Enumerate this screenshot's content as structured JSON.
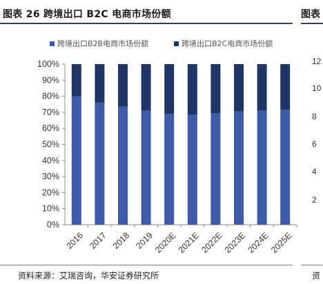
{
  "figure": {
    "title": "图表 26  跨境出口 B2C 电商市场份额",
    "title_right_fragment": "图表",
    "source": "资料来源：艾瑞咨询，华安证券研究所",
    "source_right_fragment": "资",
    "right_ticks": [
      "12",
      "10",
      "8",
      "6",
      "4",
      "2"
    ]
  },
  "chart_data": {
    "type": "bar",
    "stacked": true,
    "percent_stacked": true,
    "categories": [
      "2016",
      "2017",
      "2018",
      "2019",
      "2020E",
      "2021E",
      "2022E",
      "2023E",
      "2024E",
      "2025E"
    ],
    "series": [
      {
        "name": "跨境出口B2B电商市场份额",
        "color": "#3d5ba9",
        "values": [
          80.0,
          76.0,
          73.5,
          71.0,
          69.0,
          68.5,
          69.5,
          70.5,
          71.0,
          71.5
        ]
      },
      {
        "name": "跨境出口B2C电商市场份额",
        "color": "#1f3566",
        "values": [
          20.0,
          24.0,
          26.5,
          29.0,
          31.0,
          31.5,
          30.5,
          29.5,
          29.0,
          28.5
        ]
      }
    ],
    "y_ticks": [
      "0%",
      "10%",
      "20%",
      "30%",
      "40%",
      "50%",
      "60%",
      "70%",
      "80%",
      "90%",
      "100%"
    ],
    "ylim": [
      0,
      100
    ],
    "legend_position": "top",
    "grid": false
  }
}
